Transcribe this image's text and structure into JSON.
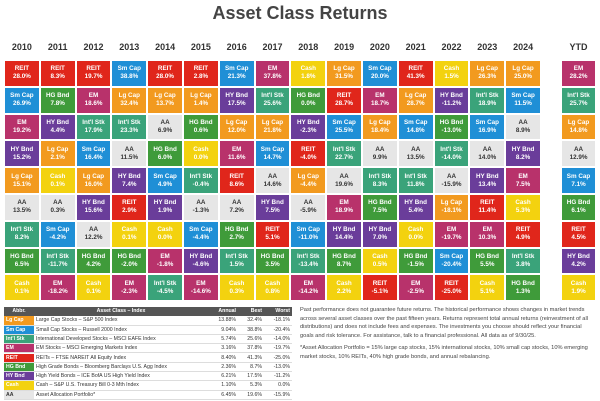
{
  "title": "Asset Class Returns",
  "colors": {
    "Lg Cap": "#f29a1f",
    "Sm Cap": "#1f8fd6",
    "Int'l Stk": "#3aa37a",
    "EM": "#b8326b",
    "REIT": "#e0261b",
    "HG Bnd": "#3f9b3a",
    "HY Bnd": "#6a3d9a",
    "Cash": "#f3d20f",
    "AA": "#e6e6e6"
  },
  "columns": [
    {
      "year": "2010",
      "cells": [
        {
          "asset": "REIT",
          "value": "28.0%"
        },
        {
          "asset": "Sm Cap",
          "value": "26.9%"
        },
        {
          "asset": "EM",
          "value": "19.2%"
        },
        {
          "asset": "HY Bnd",
          "value": "15.2%"
        },
        {
          "asset": "Lg Cap",
          "value": "15.1%"
        },
        {
          "asset": "AA",
          "value": "13.5%"
        },
        {
          "asset": "Int'l Stk",
          "value": "8.2%"
        },
        {
          "asset": "HG Bnd",
          "value": "6.5%"
        },
        {
          "asset": "Cash",
          "value": "0.1%"
        }
      ]
    },
    {
      "year": "2011",
      "cells": [
        {
          "asset": "REIT",
          "value": "8.3%"
        },
        {
          "asset": "HG Bnd",
          "value": "7.8%"
        },
        {
          "asset": "HY Bnd",
          "value": "4.4%"
        },
        {
          "asset": "Lg Cap",
          "value": "2.1%"
        },
        {
          "asset": "Cash",
          "value": "0.1%"
        },
        {
          "asset": "AA",
          "value": "0.3%"
        },
        {
          "asset": "Sm Cap",
          "value": "-4.2%"
        },
        {
          "asset": "Int'l Stk",
          "value": "-11.7%"
        },
        {
          "asset": "EM",
          "value": "-18.2%"
        }
      ]
    },
    {
      "year": "2012",
      "cells": [
        {
          "asset": "REIT",
          "value": "19.7%"
        },
        {
          "asset": "EM",
          "value": "18.6%"
        },
        {
          "asset": "Int'l Stk",
          "value": "17.9%"
        },
        {
          "asset": "Sm Cap",
          "value": "16.4%"
        },
        {
          "asset": "Lg Cap",
          "value": "16.0%"
        },
        {
          "asset": "HY Bnd",
          "value": "15.6%"
        },
        {
          "asset": "AA",
          "value": "12.2%"
        },
        {
          "asset": "HG Bnd",
          "value": "4.2%"
        },
        {
          "asset": "Cash",
          "value": "0.1%"
        }
      ]
    },
    {
      "year": "2013",
      "cells": [
        {
          "asset": "Sm Cap",
          "value": "38.8%"
        },
        {
          "asset": "Lg Cap",
          "value": "32.4%"
        },
        {
          "asset": "Int'l Stk",
          "value": "23.3%"
        },
        {
          "asset": "AA",
          "value": "11.5%"
        },
        {
          "asset": "HY Bnd",
          "value": "7.4%"
        },
        {
          "asset": "REIT",
          "value": "2.9%"
        },
        {
          "asset": "Cash",
          "value": "0.1%"
        },
        {
          "asset": "HG Bnd",
          "value": "-2.0%"
        },
        {
          "asset": "EM",
          "value": "-2.3%"
        }
      ]
    },
    {
      "year": "2014",
      "cells": [
        {
          "asset": "REIT",
          "value": "28.0%"
        },
        {
          "asset": "Lg Cap",
          "value": "13.7%"
        },
        {
          "asset": "AA",
          "value": "6.9%"
        },
        {
          "asset": "HG Bnd",
          "value": "6.0%"
        },
        {
          "asset": "Sm Cap",
          "value": "4.9%"
        },
        {
          "asset": "HY Bnd",
          "value": "1.9%"
        },
        {
          "asset": "Cash",
          "value": "0.0%"
        },
        {
          "asset": "EM",
          "value": "-1.8%"
        },
        {
          "asset": "Int'l Stk",
          "value": "-4.5%"
        }
      ]
    },
    {
      "year": "2015",
      "cells": [
        {
          "asset": "REIT",
          "value": "2.8%"
        },
        {
          "asset": "Lg Cap",
          "value": "1.4%"
        },
        {
          "asset": "HG Bnd",
          "value": "0.6%"
        },
        {
          "asset": "Cash",
          "value": "0.0%"
        },
        {
          "asset": "Int'l Stk",
          "value": "-0.4%"
        },
        {
          "asset": "AA",
          "value": "-1.3%"
        },
        {
          "asset": "Sm Cap",
          "value": "-4.4%"
        },
        {
          "asset": "HY Bnd",
          "value": "-4.6%"
        },
        {
          "asset": "EM",
          "value": "-14.6%"
        }
      ]
    },
    {
      "year": "2016",
      "cells": [
        {
          "asset": "Sm Cap",
          "value": "21.3%"
        },
        {
          "asset": "HY Bnd",
          "value": "17.5%"
        },
        {
          "asset": "Lg Cap",
          "value": "12.0%"
        },
        {
          "asset": "EM",
          "value": "11.6%"
        },
        {
          "asset": "REIT",
          "value": "8.6%"
        },
        {
          "asset": "AA",
          "value": "7.2%"
        },
        {
          "asset": "HG Bnd",
          "value": "2.7%"
        },
        {
          "asset": "Int'l Stk",
          "value": "1.5%"
        },
        {
          "asset": "Cash",
          "value": "0.3%"
        }
      ]
    },
    {
      "year": "2017",
      "cells": [
        {
          "asset": "EM",
          "value": "37.8%"
        },
        {
          "asset": "Int'l Stk",
          "value": "25.6%"
        },
        {
          "asset": "Lg Cap",
          "value": "21.8%"
        },
        {
          "asset": "Sm Cap",
          "value": "14.7%"
        },
        {
          "asset": "AA",
          "value": "14.6%"
        },
        {
          "asset": "HY Bnd",
          "value": "7.5%"
        },
        {
          "asset": "REIT",
          "value": "5.1%"
        },
        {
          "asset": "HG Bnd",
          "value": "3.5%"
        },
        {
          "asset": "Cash",
          "value": "0.8%"
        }
      ]
    },
    {
      "year": "2018",
      "cells": [
        {
          "asset": "Cash",
          "value": "1.8%"
        },
        {
          "asset": "HG Bnd",
          "value": "0.0%"
        },
        {
          "asset": "HY Bnd",
          "value": "-2.3%"
        },
        {
          "asset": "REIT",
          "value": "-4.0%"
        },
        {
          "asset": "Lg Cap",
          "value": "-4.4%"
        },
        {
          "asset": "AA",
          "value": "-5.9%"
        },
        {
          "asset": "Sm Cap",
          "value": "-11.0%"
        },
        {
          "asset": "Int'l Stk",
          "value": "-13.4%"
        },
        {
          "asset": "EM",
          "value": "-14.2%"
        }
      ]
    },
    {
      "year": "2019",
      "cells": [
        {
          "asset": "Lg Cap",
          "value": "31.5%"
        },
        {
          "asset": "REIT",
          "value": "28.7%"
        },
        {
          "asset": "Sm Cap",
          "value": "25.5%"
        },
        {
          "asset": "Int'l Stk",
          "value": "22.7%"
        },
        {
          "asset": "AA",
          "value": "19.6%"
        },
        {
          "asset": "EM",
          "value": "18.9%"
        },
        {
          "asset": "HY Bnd",
          "value": "14.4%"
        },
        {
          "asset": "HG Bnd",
          "value": "8.7%"
        },
        {
          "asset": "Cash",
          "value": "2.2%"
        }
      ]
    },
    {
      "year": "2020",
      "cells": [
        {
          "asset": "Sm Cap",
          "value": "20.0%"
        },
        {
          "asset": "EM",
          "value": "18.7%"
        },
        {
          "asset": "Lg Cap",
          "value": "18.4%"
        },
        {
          "asset": "AA",
          "value": "9.9%"
        },
        {
          "asset": "Int'l Stk",
          "value": "8.3%"
        },
        {
          "asset": "HG Bnd",
          "value": "7.5%"
        },
        {
          "asset": "HY Bnd",
          "value": "7.0%"
        },
        {
          "asset": "Cash",
          "value": "0.5%"
        },
        {
          "asset": "REIT",
          "value": "-5.1%"
        }
      ]
    },
    {
      "year": "2021",
      "cells": [
        {
          "asset": "REIT",
          "value": "41.3%"
        },
        {
          "asset": "Lg Cap",
          "value": "28.7%"
        },
        {
          "asset": "Sm Cap",
          "value": "14.8%"
        },
        {
          "asset": "AA",
          "value": "13.5%"
        },
        {
          "asset": "Int'l Stk",
          "value": "11.8%"
        },
        {
          "asset": "HY Bnd",
          "value": "5.4%"
        },
        {
          "asset": "Cash",
          "value": "0.0%"
        },
        {
          "asset": "HG Bnd",
          "value": "-1.5%"
        },
        {
          "asset": "EM",
          "value": "-2.5%"
        }
      ]
    },
    {
      "year": "2022",
      "cells": [
        {
          "asset": "Cash",
          "value": "1.5%"
        },
        {
          "asset": "HY Bnd",
          "value": "-11.2%"
        },
        {
          "asset": "HG Bnd",
          "value": "-13.0%"
        },
        {
          "asset": "Int'l Stk",
          "value": "-14.0%"
        },
        {
          "asset": "AA",
          "value": "-15.9%"
        },
        {
          "asset": "Lg Cap",
          "value": "-18.1%"
        },
        {
          "asset": "EM",
          "value": "-19.7%"
        },
        {
          "asset": "Sm Cap",
          "value": "-20.4%"
        },
        {
          "asset": "REIT",
          "value": "-25.0%"
        }
      ]
    },
    {
      "year": "2023",
      "cells": [
        {
          "asset": "Lg Cap",
          "value": "26.3%"
        },
        {
          "asset": "Int'l Stk",
          "value": "18.9%"
        },
        {
          "asset": "Sm Cap",
          "value": "16.9%"
        },
        {
          "asset": "AA",
          "value": "14.0%"
        },
        {
          "asset": "HY Bnd",
          "value": "13.4%"
        },
        {
          "asset": "REIT",
          "value": "11.4%"
        },
        {
          "asset": "EM",
          "value": "10.3%"
        },
        {
          "asset": "HG Bnd",
          "value": "5.5%"
        },
        {
          "asset": "Cash",
          "value": "5.1%"
        }
      ]
    },
    {
      "year": "2024",
      "cells": [
        {
          "asset": "Lg Cap",
          "value": "25.0%"
        },
        {
          "asset": "Sm Cap",
          "value": "11.5%"
        },
        {
          "asset": "AA",
          "value": "8.9%"
        },
        {
          "asset": "HY Bnd",
          "value": "8.2%"
        },
        {
          "asset": "EM",
          "value": "7.5%"
        },
        {
          "asset": "Cash",
          "value": "5.3%"
        },
        {
          "asset": "REIT",
          "value": "4.9%"
        },
        {
          "asset": "Int'l Stk",
          "value": "3.8%"
        },
        {
          "asset": "HG Bnd",
          "value": "1.3%"
        }
      ]
    },
    {
      "year": "YTD",
      "cells": [
        {
          "asset": "EM",
          "value": "28.2%"
        },
        {
          "asset": "Int'l Stk",
          "value": "25.7%"
        },
        {
          "asset": "Lg Cap",
          "value": "14.8%"
        },
        {
          "asset": "AA",
          "value": "12.9%"
        },
        {
          "asset": "Sm Cap",
          "value": "7.1%"
        },
        {
          "asset": "HG Bnd",
          "value": "6.1%"
        },
        {
          "asset": "REIT",
          "value": "4.5%"
        },
        {
          "asset": "HY Bnd",
          "value": "4.2%"
        },
        {
          "asset": "Cash",
          "value": "1.9%"
        }
      ]
    }
  ],
  "legend": {
    "header": [
      "Abbr.",
      "Asset Class – Index",
      "Annual",
      "Best",
      "Worst"
    ],
    "rows": [
      [
        "Lg Cap",
        "Large Cap Stocks – S&P 500 Index",
        "13.88%",
        "32.4%",
        "-18.1%"
      ],
      [
        "Sm Cap",
        "Small Cap Stocks – Russell 2000 Index",
        "9.04%",
        "38.8%",
        "-20.4%"
      ],
      [
        "Int'l Stk",
        "International Developed Stocks – MSCI EAFE Index",
        "5.74%",
        "25.6%",
        "-14.0%"
      ],
      [
        "EM",
        "EM Stocks – MSCI Emerging Markets Index",
        "3.16%",
        "37.8%",
        "-19.7%"
      ],
      [
        "REIT",
        "REITs – FTSE NAREIT All Equity Index",
        "8.40%",
        "41.3%",
        "-25.0%"
      ],
      [
        "HG Bnd",
        "High Grade Bonds – Bloomberg Barclays U.S. Agg Index",
        "2.36%",
        "8.7%",
        "-13.0%"
      ],
      [
        "HY Bnd",
        "High Yield Bonds – ICE BofA US High Yield Index",
        "6.21%",
        "17.5%",
        "-11.2%"
      ],
      [
        "Cash",
        "Cash – S&P U.S. Treasury Bill 0-3 Mth Index",
        "1.10%",
        "5.3%",
        "0.0%"
      ],
      [
        "AA",
        "Asset Allocation Portfolio*",
        "6.45%",
        "19.6%",
        "-15.9%"
      ]
    ]
  },
  "notes": [
    "Past performance does not guarantee future returns. The historical performance shows changes in market trends across several asset classes over the past fifteen years. Returns represent total annual returns (reinvestment of all distributions) and does not include fees and expenses. The investments you choose should reflect your financial goals and risk tolerance. For assistance, talk to a financial professional. All data as of 9/30/25.",
    "*Asset Allocation Portfolio = 15% large cap stocks, 15% international stocks, 10% small cap stocks, 10% emerging market stocks, 10% REITs, 40% high grade bonds, and annual rebalancing."
  ]
}
